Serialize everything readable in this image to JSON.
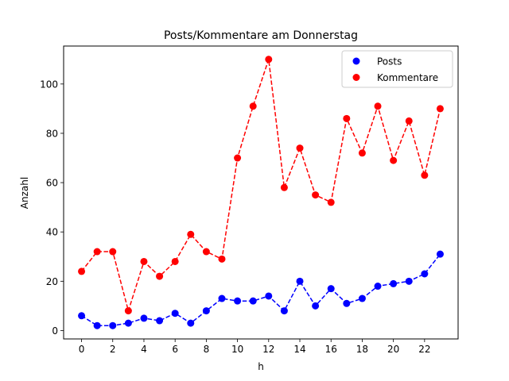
{
  "chart_data": {
    "type": "line",
    "title": "Posts/Kommentare am Donnerstag",
    "xlabel": "h",
    "ylabel": "Anzahl",
    "x": [
      0,
      1,
      2,
      3,
      4,
      5,
      6,
      7,
      8,
      9,
      10,
      11,
      12,
      13,
      14,
      15,
      16,
      17,
      18,
      19,
      20,
      21,
      22,
      23
    ],
    "series": [
      {
        "name": "Posts",
        "color": "#0000ff",
        "style": "dashed-with-circles",
        "values": [
          6,
          2,
          2,
          3,
          5,
          4,
          7,
          3,
          8,
          13,
          12,
          12,
          14,
          8,
          20,
          10,
          17,
          11,
          13,
          18,
          19,
          20,
          23,
          31
        ]
      },
      {
        "name": "Kommentare",
        "color": "#ff0000",
        "style": "dashed-with-circles",
        "values": [
          24,
          32,
          32,
          8,
          28,
          22,
          28,
          39,
          32,
          29,
          70,
          91,
          110,
          58,
          74,
          55,
          52,
          86,
          72,
          91,
          69,
          85,
          63,
          90
        ]
      }
    ],
    "xticks": [
      0,
      2,
      4,
      6,
      8,
      10,
      12,
      14,
      16,
      18,
      20,
      22
    ],
    "yticks": [
      0,
      20,
      40,
      60,
      80,
      100
    ],
    "xlim": [
      -1.15,
      24.15
    ],
    "ylim": [
      -3.4,
      115.4
    ],
    "grid": false,
    "legend_position": "upper right"
  }
}
